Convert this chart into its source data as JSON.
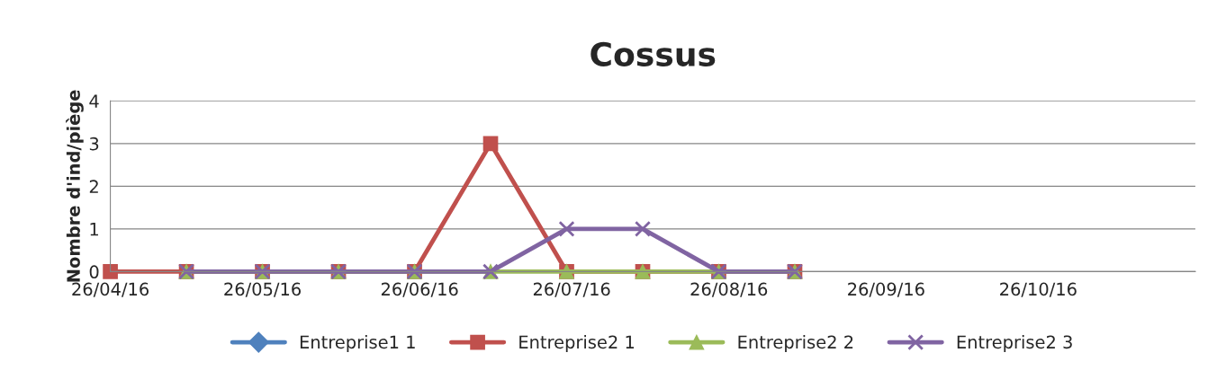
{
  "chart_data": {
    "type": "line",
    "title": "Cossus",
    "ylabel": "Nombre d'ind/piège",
    "x": [
      "2016-04-26",
      "2016-05-11",
      "2016-05-26",
      "2016-06-10",
      "2016-06-25",
      "2016-07-10",
      "2016-07-25",
      "2016-08-09",
      "2016-08-24",
      "2016-09-08"
    ],
    "series": [
      {
        "name": "Entreprise1 1",
        "color": "#4f81bd",
        "marker": "diamond",
        "values": [
          null,
          null,
          null,
          null,
          null,
          null,
          null,
          null,
          null,
          null
        ]
      },
      {
        "name": "Entreprise2 1",
        "color": "#c0504d",
        "marker": "square",
        "values": [
          0,
          0,
          0,
          0,
          0,
          3,
          0,
          0,
          0,
          0
        ]
      },
      {
        "name": "Entreprise2 2",
        "color": "#9bbb59",
        "marker": "triangle",
        "values": [
          null,
          0,
          0,
          0,
          0,
          0,
          0,
          0,
          0,
          0
        ]
      },
      {
        "name": "Entreprise2 3",
        "color": "#8064a2",
        "marker": "cross",
        "values": [
          null,
          0,
          0,
          0,
          0,
          0,
          1,
          1,
          0,
          0
        ]
      }
    ],
    "xlim": [
      "2016-04-26",
      "2016-11-26"
    ],
    "xticks": [
      {
        "value": "2016-04-26",
        "label": "26/04/16"
      },
      {
        "value": "2016-05-26",
        "label": "26/05/16"
      },
      {
        "value": "2016-06-26",
        "label": "26/06/16"
      },
      {
        "value": "2016-07-26",
        "label": "26/07/16"
      },
      {
        "value": "2016-08-26",
        "label": "26/08/16"
      },
      {
        "value": "2016-09-26",
        "label": "26/09/16"
      },
      {
        "value": "2016-10-26",
        "label": "26/10/16"
      }
    ],
    "ylim": [
      0,
      4
    ],
    "yticks": [
      0,
      1,
      2,
      3,
      4
    ],
    "grid": "y",
    "legend": "bottom",
    "line_style": "solid"
  }
}
